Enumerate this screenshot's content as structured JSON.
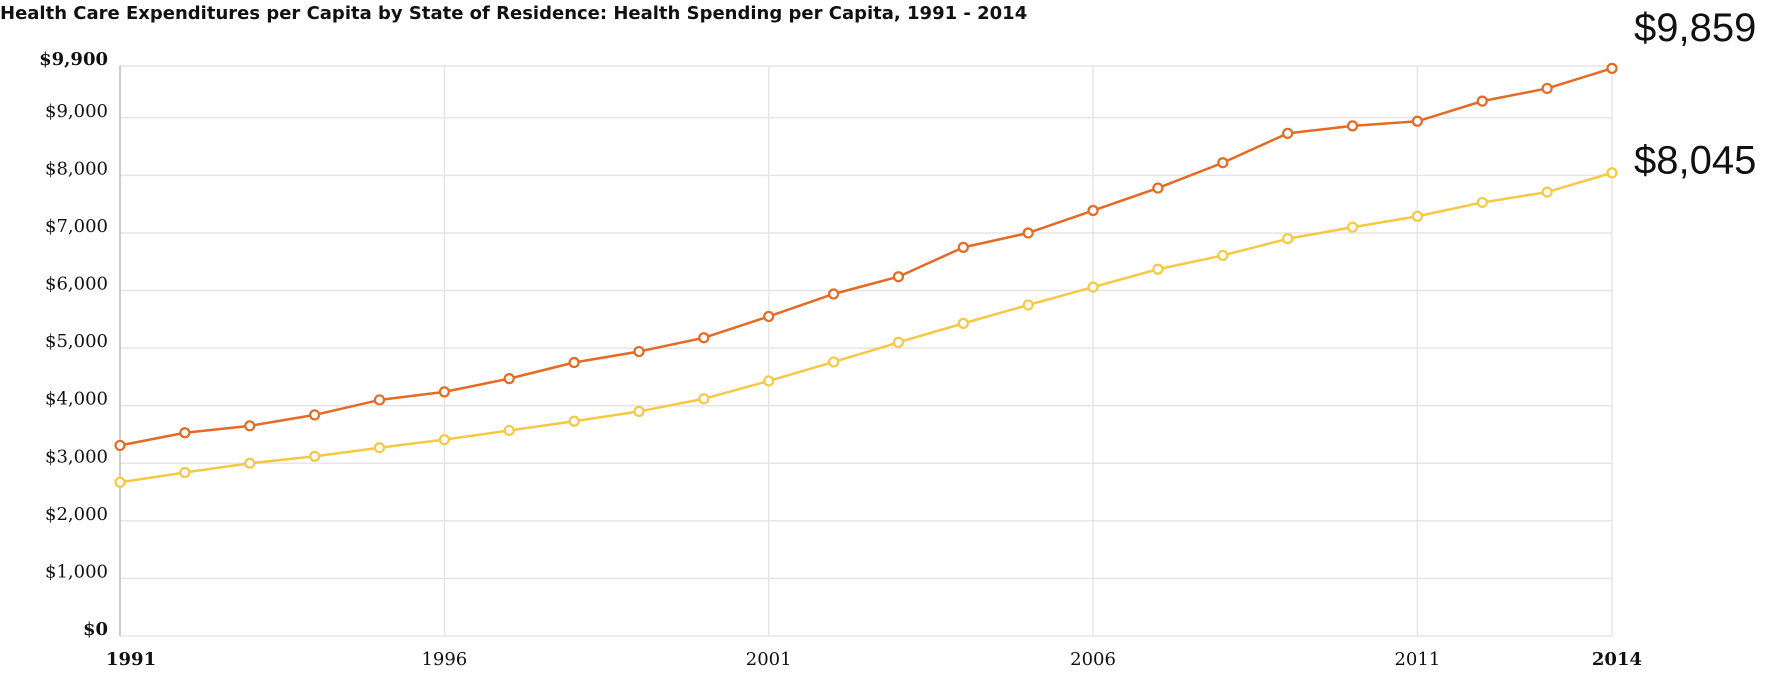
{
  "chart_data": {
    "type": "line",
    "title": "Health Care Expenditures per Capita by State of Residence: Health Spending per Capita, 1991 - 2014",
    "x": [
      1991,
      1992,
      1993,
      1994,
      1995,
      1996,
      1997,
      1998,
      1999,
      2000,
      2001,
      2002,
      2003,
      2004,
      2005,
      2006,
      2007,
      2008,
      2009,
      2010,
      2011,
      2012,
      2013,
      2014
    ],
    "xlim": [
      1991,
      2014
    ],
    "xticks": [
      1991,
      1996,
      2001,
      2006,
      2011,
      2014
    ],
    "ylim": [
      0,
      9900
    ],
    "yticks": [
      {
        "value": 0,
        "label": "$0"
      },
      {
        "value": 1000,
        "label": "$1,000"
      },
      {
        "value": 2000,
        "label": "$2,000"
      },
      {
        "value": 3000,
        "label": "$3,000"
      },
      {
        "value": 4000,
        "label": "$4,000"
      },
      {
        "value": 5000,
        "label": "$5,000"
      },
      {
        "value": 6000,
        "label": "$6,000"
      },
      {
        "value": 7000,
        "label": "$7,000"
      },
      {
        "value": 8000,
        "label": "$8,000"
      },
      {
        "value": 9000,
        "label": "$9,000"
      },
      {
        "value": 9900,
        "label": "$9,900"
      }
    ],
    "grid": true,
    "series": [
      {
        "color": "#e56a24",
        "values": [
          3310,
          3530,
          3650,
          3840,
          4100,
          4240,
          4470,
          4750,
          4940,
          5180,
          5550,
          5940,
          6240,
          6750,
          7000,
          7390,
          7780,
          8220,
          8730,
          8860,
          8940,
          9290,
          9510,
          9859
        ],
        "value_labels": [
          null,
          null,
          null,
          null,
          null,
          null,
          null,
          null,
          null,
          null,
          null,
          null,
          null,
          null,
          null,
          null,
          null,
          null,
          null,
          null,
          null,
          null,
          null,
          "$9,859"
        ]
      },
      {
        "color": "#f6c843",
        "values": [
          2670,
          2840,
          3000,
          3120,
          3270,
          3410,
          3570,
          3730,
          3900,
          4120,
          4430,
          4760,
          5100,
          5430,
          5750,
          6060,
          6370,
          6610,
          6900,
          7100,
          7290,
          7530,
          7710,
          8045
        ],
        "value_labels": [
          null,
          null,
          null,
          null,
          null,
          null,
          null,
          null,
          null,
          null,
          null,
          null,
          null,
          null,
          null,
          null,
          null,
          null,
          null,
          null,
          null,
          null,
          null,
          "$8,045"
        ]
      }
    ]
  }
}
